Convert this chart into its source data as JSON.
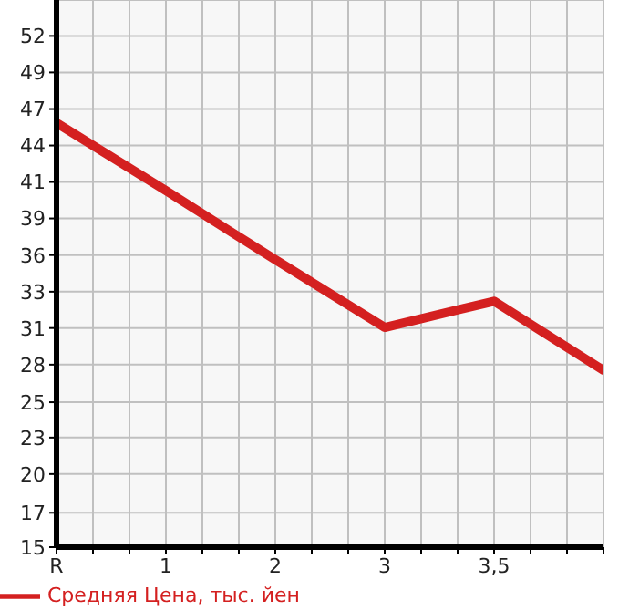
{
  "chart_data": {
    "type": "line",
    "categories": [
      "R",
      "1",
      "2",
      "3",
      "3,5",
      null
    ],
    "series": [
      {
        "name": "Средняя Цена, тыс. йен",
        "color": "#d42020",
        "values": [
          45.7,
          40.8,
          35.8,
          30.9,
          32.8,
          27.8
        ]
      }
    ],
    "ylim": [
      15,
      54.6
    ],
    "yticks": [
      15,
      {
        "value": 17.49,
        "label": "17"
      },
      {
        "value": 20.29,
        "label": "20"
      },
      {
        "value": 22.93,
        "label": "23"
      },
      {
        "value": 25.49,
        "label": "25"
      },
      {
        "value": 28.21,
        "label": "28"
      },
      {
        "value": 30.86,
        "label": "31"
      },
      {
        "value": 33.49,
        "label": "33"
      },
      {
        "value": 36.14,
        "label": "36"
      },
      {
        "value": 38.79,
        "label": "39"
      },
      {
        "value": 41.43,
        "label": "41"
      },
      {
        "value": 44.07,
        "label": "44"
      },
      {
        "value": 46.71,
        "label": "47"
      },
      {
        "value": 49.36,
        "label": "49"
      },
      52
    ],
    "grid": true,
    "legend": "bottom left",
    "marker": "none",
    "line_style": "solid"
  }
}
